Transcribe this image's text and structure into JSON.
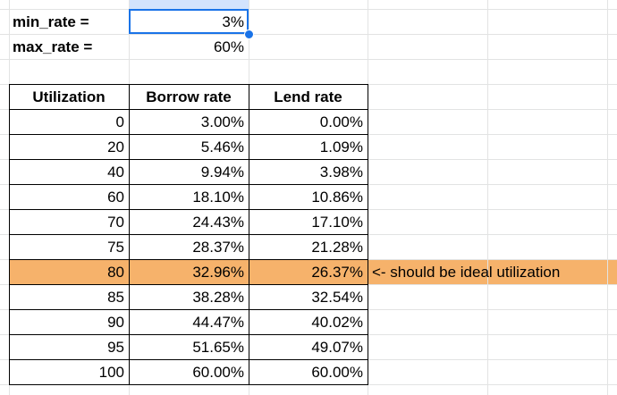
{
  "params": [
    {
      "label": "min_rate =",
      "value": "3%"
    },
    {
      "label": "max_rate =",
      "value": "60%"
    }
  ],
  "table": {
    "headers": [
      "Utilization",
      "Borrow rate",
      "Lend rate"
    ],
    "rows": [
      {
        "utilization": "0",
        "borrow": "3.00%",
        "lend": "0.00%"
      },
      {
        "utilization": "20",
        "borrow": "5.46%",
        "lend": "1.09%"
      },
      {
        "utilization": "40",
        "borrow": "9.94%",
        "lend": "3.98%"
      },
      {
        "utilization": "60",
        "borrow": "18.10%",
        "lend": "10.86%"
      },
      {
        "utilization": "70",
        "borrow": "24.43%",
        "lend": "17.10%"
      },
      {
        "utilization": "75",
        "borrow": "28.37%",
        "lend": "21.28%"
      },
      {
        "utilization": "80",
        "borrow": "32.96%",
        "lend": "26.37%",
        "note": "<- should be ideal utilization"
      },
      {
        "utilization": "85",
        "borrow": "38.28%",
        "lend": "32.54%"
      },
      {
        "utilization": "90",
        "borrow": "44.47%",
        "lend": "40.02%"
      },
      {
        "utilization": "95",
        "borrow": "51.65%",
        "lend": "49.07%"
      },
      {
        "utilization": "100",
        "borrow": "60.00%",
        "lend": "60.00%"
      }
    ]
  },
  "colors": {
    "highlight_row": "#f6b26b",
    "selection": "#1a73e8",
    "gridline": "#e2e3e3"
  }
}
